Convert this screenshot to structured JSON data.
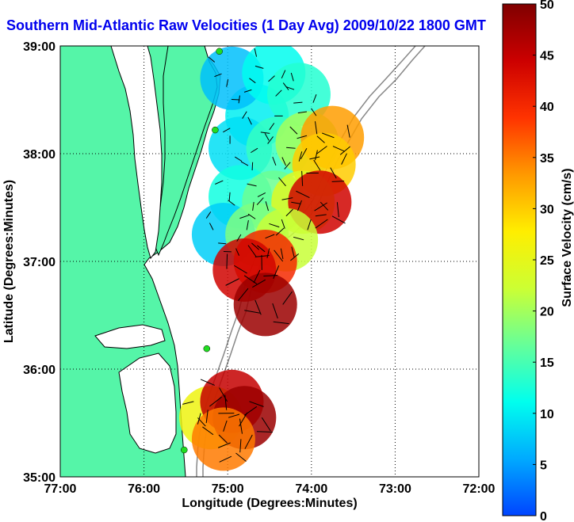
{
  "title": "Southern Mid-Atlantic Raw Velocities (1 Day Avg) 2009/10/22 1800 GMT",
  "map": {
    "xlabel": "Longitude (Degrees:Minutes)",
    "ylabel": "Latitude (Degrees:Minutes)",
    "x_ticks": [
      {
        "lon": -77,
        "label": "77:00"
      },
      {
        "lon": -76,
        "label": "76:00"
      },
      {
        "lon": -75,
        "label": "75:00"
      },
      {
        "lon": -74,
        "label": "74:00"
      },
      {
        "lon": -73,
        "label": "73:00"
      },
      {
        "lon": -72,
        "label": "72:00"
      }
    ],
    "y_ticks": [
      {
        "lat": 39,
        "label": "39:00"
      },
      {
        "lat": 38,
        "label": "38:00"
      },
      {
        "lat": 37,
        "label": "37:00"
      },
      {
        "lat": 36,
        "label": "36:00"
      },
      {
        "lat": 35,
        "label": "35:00"
      }
    ],
    "lon_range": [
      -77,
      -72
    ],
    "lat_range": [
      35,
      39
    ],
    "grid": "dotted",
    "land_color": "#55f5a8",
    "station_color": "#22dd22"
  },
  "colorbar": {
    "label": "Surface Velocity (cm/s)",
    "min": 0,
    "max": 50,
    "ticks": [
      {
        "value": 0,
        "label": "0"
      },
      {
        "value": 5,
        "label": "5"
      },
      {
        "value": 10,
        "label": "10"
      },
      {
        "value": 15,
        "label": "15"
      },
      {
        "value": 20,
        "label": "20"
      },
      {
        "value": 25,
        "label": "25"
      },
      {
        "value": 30,
        "label": "30"
      },
      {
        "value": 35,
        "label": "35"
      },
      {
        "value": 40,
        "label": "40"
      },
      {
        "value": 45,
        "label": "45"
      },
      {
        "value": 50,
        "label": "50"
      }
    ],
    "colormap": [
      "#0044ff",
      "#00aaff",
      "#00ffee",
      "#66ff99",
      "#ccff33",
      "#ffee00",
      "#ff9900",
      "#ff3300",
      "#cc0000",
      "#800000"
    ]
  },
  "velocity_field": {
    "stations": [
      {
        "lon": -75.1,
        "lat": 38.95
      },
      {
        "lon": -75.15,
        "lat": 38.22
      },
      {
        "lon": -75.25,
        "lat": 36.19
      },
      {
        "lon": -75.52,
        "lat": 35.25
      }
    ],
    "patches": [
      {
        "lon": -74.65,
        "lat": 38.35,
        "speed": 10
      },
      {
        "lon": -74.95,
        "lat": 38.7,
        "speed": 7
      },
      {
        "lon": -74.45,
        "lat": 38.75,
        "speed": 11
      },
      {
        "lon": -74.15,
        "lat": 38.55,
        "speed": 13
      },
      {
        "lon": -74.85,
        "lat": 38.05,
        "speed": 9
      },
      {
        "lon": -74.4,
        "lat": 38.05,
        "speed": 14
      },
      {
        "lon": -74.05,
        "lat": 38.1,
        "speed": 20
      },
      {
        "lon": -73.75,
        "lat": 38.15,
        "speed": 33
      },
      {
        "lon": -73.85,
        "lat": 37.9,
        "speed": 30
      },
      {
        "lon": -74.85,
        "lat": 37.6,
        "speed": 12
      },
      {
        "lon": -74.45,
        "lat": 37.55,
        "speed": 17
      },
      {
        "lon": -74.1,
        "lat": 37.55,
        "speed": 24
      },
      {
        "lon": -73.9,
        "lat": 37.55,
        "speed": 44
      },
      {
        "lon": -75.05,
        "lat": 37.25,
        "speed": 8
      },
      {
        "lon": -74.65,
        "lat": 37.25,
        "speed": 18
      },
      {
        "lon": -74.3,
        "lat": 37.2,
        "speed": 22
      },
      {
        "lon": -74.55,
        "lat": 37.0,
        "speed": 40
      },
      {
        "lon": -74.8,
        "lat": 36.92,
        "speed": 44
      },
      {
        "lon": -74.55,
        "lat": 36.6,
        "speed": 48
      },
      {
        "lon": -75.2,
        "lat": 35.55,
        "speed": 26
      },
      {
        "lon": -74.95,
        "lat": 35.7,
        "speed": 45
      },
      {
        "lon": -74.8,
        "lat": 35.55,
        "speed": 48
      },
      {
        "lon": -75.05,
        "lat": 35.35,
        "speed": 35
      }
    ]
  }
}
